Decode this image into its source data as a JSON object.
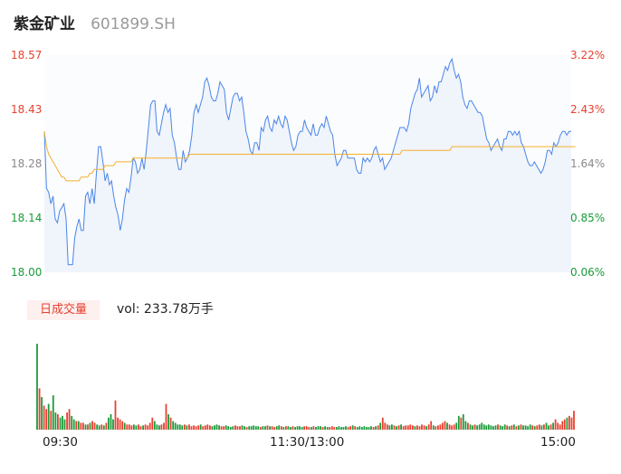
{
  "header": {
    "name": "紫金矿业",
    "code": "601899.SH"
  },
  "volume_badge": "日成交量",
  "volume_prefix": "vol: ",
  "volume_value": "233.78万手",
  "colors": {
    "up": "#e8402f",
    "down": "#1a9b3a",
    "neutral": "#8a8a8a",
    "price_line": "#4a86e8",
    "avg_line": "#f5b02e",
    "area_fill": "#f0f4fb"
  },
  "chart_data": {
    "type": "line",
    "y_left_ticks": [
      "18.57",
      "18.43",
      "18.28",
      "18.14",
      "18.00"
    ],
    "y_right_ticks": [
      "3.22%",
      "2.43%",
      "1.64%",
      "0.85%",
      "0.06%"
    ],
    "x_ticks": [
      "09:30",
      "11:30/13:00",
      "15:00"
    ],
    "ylim": [
      18.0,
      18.57
    ],
    "price": [
      18.37,
      18.22,
      18.21,
      18.18,
      18.2,
      18.14,
      18.13,
      18.16,
      18.17,
      18.18,
      18.14,
      18.02,
      18.02,
      18.02,
      18.09,
      18.12,
      18.14,
      18.11,
      18.11,
      18.2,
      18.21,
      18.18,
      18.22,
      18.18,
      18.26,
      18.33,
      18.33,
      18.29,
      18.24,
      18.26,
      18.23,
      18.24,
      18.2,
      18.17,
      18.15,
      18.11,
      18.14,
      18.19,
      18.22,
      18.21,
      18.25,
      18.3,
      18.29,
      18.26,
      18.27,
      18.3,
      18.27,
      18.32,
      18.38,
      18.44,
      18.45,
      18.45,
      18.37,
      18.36,
      18.39,
      18.42,
      18.44,
      18.42,
      18.43,
      18.36,
      18.34,
      18.3,
      18.27,
      18.27,
      18.32,
      18.29,
      18.3,
      18.32,
      18.36,
      18.42,
      18.44,
      18.42,
      18.44,
      18.46,
      18.5,
      18.51,
      18.49,
      18.46,
      18.45,
      18.45,
      18.47,
      18.5,
      18.49,
      18.48,
      18.42,
      18.4,
      18.43,
      18.46,
      18.47,
      18.47,
      18.45,
      18.46,
      18.42,
      18.37,
      18.35,
      18.32,
      18.31,
      18.34,
      18.34,
      18.32,
      18.38,
      18.37,
      18.4,
      18.41,
      18.38,
      18.37,
      18.4,
      18.39,
      18.41,
      18.39,
      18.38,
      18.41,
      18.4,
      18.37,
      18.34,
      18.32,
      18.33,
      18.36,
      18.37,
      18.37,
      18.4,
      18.38,
      18.37,
      18.36,
      18.39,
      18.36,
      18.36,
      18.38,
      18.39,
      18.38,
      18.41,
      18.39,
      18.37,
      18.36,
      18.31,
      18.28,
      18.29,
      18.3,
      18.32,
      18.32,
      18.3,
      18.3,
      18.3,
      18.3,
      18.27,
      18.26,
      18.26,
      18.3,
      18.29,
      18.3,
      18.29,
      18.3,
      18.32,
      18.33,
      18.31,
      18.29,
      18.3,
      18.27,
      18.28,
      18.29,
      18.3,
      18.32,
      18.34,
      18.36,
      18.38,
      18.38,
      18.38,
      18.37,
      18.39,
      18.43,
      18.45,
      18.47,
      18.48,
      18.51,
      18.46,
      18.47,
      18.48,
      18.49,
      18.45,
      18.46,
      18.49,
      18.47,
      18.5,
      18.5,
      18.52,
      18.54,
      18.53,
      18.55,
      18.56,
      18.53,
      18.51,
      18.52,
      18.5,
      18.46,
      18.44,
      18.43,
      18.45,
      18.45,
      18.44,
      18.43,
      18.42,
      18.42,
      18.41,
      18.38,
      18.35,
      18.34,
      18.32,
      18.33,
      18.34,
      18.35,
      18.33,
      18.32,
      18.35,
      18.35,
      18.37,
      18.37,
      18.36,
      18.37,
      18.36,
      18.37,
      18.34,
      18.33,
      18.31,
      18.29,
      18.28,
      18.28,
      18.29,
      18.28,
      18.27,
      18.26,
      18.27,
      18.29,
      18.32,
      18.32,
      18.31,
      18.34,
      18.33,
      18.34,
      18.36,
      18.37,
      18.37,
      18.36,
      18.37,
      18.37
    ],
    "avg": [
      18.37,
      18.33,
      18.31,
      18.3,
      18.29,
      18.28,
      18.27,
      18.26,
      18.25,
      18.25,
      18.24,
      18.24,
      18.24,
      18.24,
      18.24,
      18.24,
      18.24,
      18.25,
      18.25,
      18.25,
      18.25,
      18.26,
      18.26,
      18.27,
      18.27,
      18.27,
      18.27,
      18.27,
      18.28,
      18.28,
      18.28,
      18.28,
      18.28,
      18.29,
      18.29,
      18.29,
      18.29,
      18.29,
      18.29,
      18.29,
      18.29,
      18.3,
      18.3,
      18.3,
      18.3,
      18.3,
      18.3,
      18.3,
      18.3,
      18.3,
      18.3,
      18.3,
      18.3,
      18.3,
      18.3,
      18.3,
      18.3,
      18.3,
      18.3,
      18.3,
      18.3,
      18.3,
      18.3,
      18.3,
      18.3,
      18.3,
      18.3,
      18.31,
      18.31,
      18.31,
      18.31,
      18.31,
      18.31,
      18.31,
      18.31,
      18.31,
      18.31,
      18.31,
      18.31,
      18.31,
      18.31,
      18.31,
      18.31,
      18.31,
      18.31,
      18.31,
      18.31,
      18.31,
      18.31,
      18.31,
      18.31,
      18.31,
      18.31,
      18.31,
      18.31,
      18.31,
      18.31,
      18.31,
      18.31,
      18.31,
      18.31,
      18.31,
      18.31,
      18.31,
      18.31,
      18.31,
      18.31,
      18.31,
      18.31,
      18.31,
      18.31,
      18.31,
      18.31,
      18.31,
      18.31,
      18.31,
      18.31,
      18.31,
      18.31,
      18.31,
      18.31,
      18.31,
      18.31,
      18.31,
      18.31,
      18.31,
      18.31,
      18.31,
      18.31,
      18.31,
      18.31,
      18.31,
      18.31,
      18.31,
      18.31,
      18.31,
      18.31,
      18.31,
      18.31,
      18.31,
      18.31,
      18.31,
      18.31,
      18.31,
      18.31,
      18.31,
      18.31,
      18.31,
      18.31,
      18.31,
      18.31,
      18.31,
      18.31,
      18.31,
      18.31,
      18.31,
      18.31,
      18.31,
      18.31,
      18.31,
      18.31,
      18.31,
      18.31,
      18.31,
      18.31,
      18.32,
      18.32,
      18.32,
      18.32,
      18.32,
      18.32,
      18.32,
      18.32,
      18.32,
      18.32,
      18.32,
      18.32,
      18.32,
      18.32,
      18.32,
      18.32,
      18.32,
      18.32,
      18.32,
      18.32,
      18.32,
      18.32,
      18.32,
      18.33,
      18.33,
      18.33,
      18.33,
      18.33,
      18.33,
      18.33,
      18.33,
      18.33,
      18.33,
      18.33,
      18.33,
      18.33,
      18.33,
      18.33,
      18.33,
      18.33,
      18.33,
      18.33,
      18.33,
      18.33,
      18.33,
      18.33,
      18.33,
      18.33,
      18.33,
      18.33,
      18.33,
      18.33,
      18.33,
      18.33,
      18.33,
      18.33,
      18.33,
      18.33,
      18.33,
      18.33,
      18.33,
      18.33,
      18.33,
      18.33,
      18.33,
      18.33,
      18.33,
      18.33,
      18.33,
      18.33,
      18.33,
      18.33,
      18.33,
      18.33,
      18.33,
      18.33,
      18.33,
      18.33,
      18.33,
      18.33,
      18.33
    ],
    "volume": [
      100,
      48,
      38,
      28,
      24,
      30,
      22,
      40,
      20,
      18,
      14,
      16,
      12,
      20,
      24,
      16,
      12,
      10,
      10,
      8,
      8,
      6,
      6,
      8,
      10,
      8,
      6,
      5,
      6,
      5,
      8,
      14,
      18,
      12,
      34,
      14,
      12,
      10,
      8,
      6,
      6,
      5,
      6,
      5,
      6,
      4,
      5,
      6,
      5,
      8,
      14,
      10,
      6,
      5,
      6,
      8,
      30,
      18,
      14,
      10,
      8,
      6,
      6,
      5,
      6,
      5,
      6,
      4,
      5,
      4,
      5,
      6,
      4,
      5,
      6,
      5,
      4,
      5,
      6,
      5,
      4,
      4,
      5,
      4,
      3,
      4,
      5,
      4,
      4,
      5,
      4,
      3,
      4,
      4,
      5,
      4,
      4,
      3,
      4,
      4,
      5,
      4,
      4,
      3,
      4,
      5,
      4,
      3,
      4,
      4,
      3,
      4,
      3,
      4,
      4,
      3,
      4,
      4,
      3,
      3,
      4,
      3,
      4,
      4,
      3,
      4,
      3,
      3,
      4,
      3,
      3,
      4,
      3,
      3,
      4,
      3,
      4,
      5,
      4,
      3,
      4,
      3,
      4,
      3,
      3,
      4,
      3,
      4,
      5,
      8,
      14,
      8,
      6,
      5,
      6,
      5,
      4,
      5,
      6,
      4,
      5,
      5,
      6,
      5,
      4,
      5,
      4,
      6,
      5,
      4,
      6,
      10,
      5,
      4,
      5,
      6,
      8,
      10,
      8,
      6,
      5,
      6,
      8,
      16,
      14,
      18,
      10,
      8,
      6,
      5,
      6,
      5,
      6,
      8,
      6,
      5,
      6,
      5,
      4,
      5,
      6,
      5,
      4,
      6,
      5,
      4,
      5,
      6,
      4,
      5,
      6,
      5,
      5,
      4,
      6,
      5,
      4,
      5,
      6,
      5,
      6,
      8,
      5,
      6,
      8,
      12,
      8,
      6,
      10,
      12,
      14,
      16,
      14,
      22
    ],
    "volume_colors": [
      "down",
      "up",
      "down",
      "up",
      "up",
      "down",
      "up",
      "down",
      "down",
      "up",
      "down",
      "down",
      "down",
      "up",
      "up",
      "down",
      "down",
      "up",
      "down",
      "up",
      "up",
      "down",
      "up",
      "down",
      "up",
      "up",
      "down",
      "down",
      "up",
      "down",
      "up",
      "down",
      "down",
      "down",
      "up",
      "up",
      "up",
      "up",
      "down",
      "up",
      "up",
      "up",
      "down",
      "down",
      "up",
      "up",
      "down",
      "up",
      "up",
      "up",
      "up",
      "down",
      "down",
      "down",
      "up",
      "up",
      "up",
      "down",
      "up",
      "down",
      "down",
      "down",
      "down",
      "down",
      "up",
      "down",
      "up",
      "up",
      "up",
      "up",
      "up",
      "down",
      "up",
      "up",
      "up",
      "up",
      "down",
      "down",
      "down",
      "down",
      "up",
      "up",
      "down",
      "down",
      "down",
      "down",
      "up",
      "up",
      "up",
      "down",
      "down",
      "up",
      "down",
      "down",
      "down",
      "down",
      "down",
      "up",
      "down",
      "down",
      "up",
      "down",
      "up",
      "up",
      "down",
      "down",
      "up",
      "down",
      "up",
      "down",
      "down",
      "up",
      "down",
      "down",
      "down",
      "down",
      "up",
      "up",
      "up",
      "down",
      "up",
      "down",
      "down",
      "down",
      "up",
      "down",
      "down",
      "up",
      "up",
      "up",
      "down",
      "down",
      "down",
      "down",
      "down",
      "up",
      "up",
      "down",
      "up",
      "down",
      "down",
      "down",
      "down",
      "down",
      "down",
      "down",
      "up",
      "down",
      "up",
      "down",
      "up",
      "up",
      "up",
      "down",
      "down",
      "up",
      "down",
      "up",
      "down",
      "up",
      "up",
      "up",
      "up",
      "up",
      "down",
      "up",
      "up",
      "up",
      "up",
      "down",
      "up",
      "up",
      "down",
      "up",
      "up",
      "up",
      "up",
      "up",
      "down",
      "up",
      "up",
      "up",
      "down",
      "down",
      "up",
      "down",
      "down",
      "up",
      "down",
      "down",
      "up",
      "down",
      "down",
      "down",
      "down",
      "down",
      "down",
      "down",
      "down",
      "down",
      "up",
      "down",
      "down",
      "down",
      "up",
      "down",
      "up",
      "down",
      "up",
      "down",
      "up",
      "down",
      "down",
      "down",
      "down",
      "up",
      "down",
      "up",
      "up",
      "down",
      "up",
      "down",
      "down",
      "up",
      "down",
      "up",
      "up",
      "up",
      "up",
      "up",
      "down",
      "up",
      "up",
      "up",
      "down",
      "up",
      "up",
      "up",
      "up",
      "down",
      "up",
      "down",
      "up",
      "down",
      "down",
      "up",
      "up",
      "up",
      "down",
      "down",
      "down",
      "up"
    ]
  }
}
